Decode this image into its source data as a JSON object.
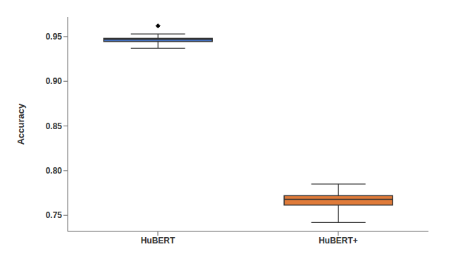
{
  "chart_data": {
    "type": "box",
    "ylabel": "Accuracy",
    "boxes": [
      {
        "label": "HuBERT",
        "color": "#4472C4",
        "q1": 0.9445,
        "median": 0.947,
        "q3": 0.948,
        "whisker_low": 0.937,
        "whisker_high": 0.953,
        "fliers": [
          0.962
        ]
      },
      {
        "label": "HuBERT+",
        "color": "#E07B39",
        "q1": 0.7615,
        "median": 0.768,
        "q3": 0.772,
        "whisker_low": 0.742,
        "whisker_high": 0.785,
        "fliers": []
      }
    ],
    "ylim": [
      0.732,
      0.972
    ],
    "yticks": [
      0.75,
      {
        "value": 0.8,
        "label": "0.80"
      },
      0.85,
      {
        "value": 0.9,
        "label": "0.90"
      },
      0.95
    ]
  }
}
